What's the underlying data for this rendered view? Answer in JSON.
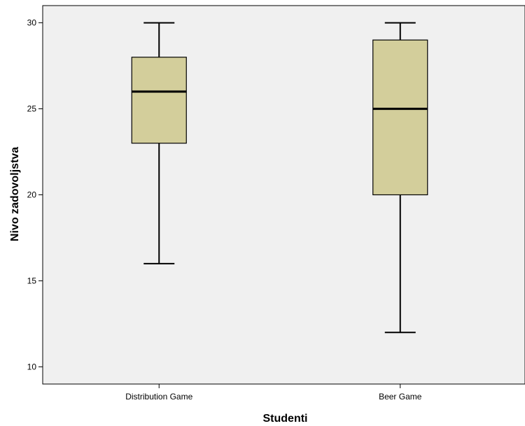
{
  "chart_data": {
    "type": "box",
    "xlabel": "Studenti",
    "ylabel": "Nivo zadovoljstva",
    "ylim": [
      9,
      31
    ],
    "yticks": [
      10,
      15,
      20,
      25,
      30
    ],
    "categories": [
      "Distribution Game",
      "Beer Game"
    ],
    "boxes": [
      {
        "category": "Distribution Game",
        "min": 16,
        "q1": 23,
        "median": 26,
        "q3": 28,
        "max": 30
      },
      {
        "category": "Beer Game",
        "min": 12,
        "q1": 20,
        "median": 25,
        "q3": 29,
        "max": 30
      }
    ],
    "grid": false,
    "colors": {
      "plot_background": "#f0f0f0",
      "box_fill": "#d3ce9b",
      "line": "#000000"
    }
  }
}
